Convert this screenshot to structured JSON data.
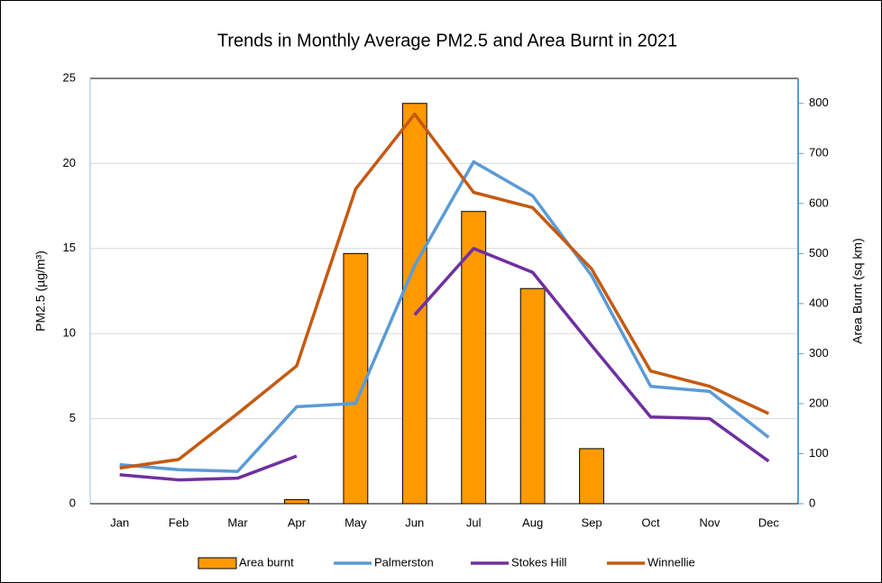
{
  "chart_data": {
    "type": "combo",
    "title": "Trends in Monthly Average PM2.5 and Area Burnt in 2021",
    "y_label": "PM2.5 (µg/m³)",
    "y2_label": "Area Burnt (sq km)",
    "categories": [
      "Jan",
      "Feb",
      "Mar",
      "Apr",
      "May",
      "Jun",
      "Jul",
      "Aug",
      "Sep",
      "Oct",
      "Nov",
      "Dec"
    ],
    "ylim": [
      0,
      25
    ],
    "yticks": [
      0,
      5,
      10,
      15,
      20,
      25
    ],
    "y2lim": [
      0,
      850
    ],
    "y2ticks": [
      0,
      100,
      200,
      300,
      400,
      500,
      600,
      700,
      800
    ],
    "grid": true,
    "legend": "bottom",
    "series": [
      {
        "name": "Area burnt",
        "type": "bar",
        "axis": "y2",
        "color": "#FF9900",
        "values": [
          0,
          0,
          0,
          8,
          500,
          800,
          584,
          430,
          110,
          0,
          0,
          0
        ]
      },
      {
        "name": "Palmerston",
        "type": "line",
        "color": "#5B9BD5",
        "values": [
          2.3,
          2.0,
          1.9,
          5.7,
          5.9,
          14.0,
          20.1,
          18.1,
          13.4,
          6.9,
          6.6,
          3.9
        ]
      },
      {
        "name": "Stokes Hill",
        "type": "line",
        "color": "#7030A0",
        "values": [
          1.7,
          1.4,
          1.5,
          2.8,
          null,
          11.1,
          15.0,
          13.6,
          9.3,
          5.1,
          5.0,
          2.5
        ]
      },
      {
        "name": "Winnellie",
        "type": "line",
        "color": "#C55A11",
        "values": [
          2.1,
          2.6,
          5.3,
          8.1,
          18.5,
          22.9,
          18.3,
          17.4,
          13.8,
          7.8,
          6.9,
          5.3
        ]
      }
    ]
  }
}
